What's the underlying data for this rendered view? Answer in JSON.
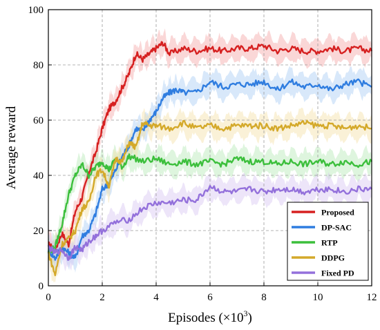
{
  "chart_data": {
    "type": "line",
    "xlabel": "Episodes (×10",
    "xlabel_sup": "3",
    "xlabel_close": ")",
    "ylabel": "Average reward",
    "xlim": [
      0,
      12
    ],
    "ylim": [
      0,
      100
    ],
    "x_ticks": [
      "0",
      "2",
      "4",
      "6",
      "8",
      "10",
      "12"
    ],
    "y_ticks": [
      "0",
      "20",
      "40",
      "60",
      "80",
      "100"
    ],
    "grid": true,
    "legend_position": "bottom-right",
    "series": [
      {
        "name": "Proposed",
        "color": "#d62020",
        "band_color": "#f4a6a6",
        "x": [
          0,
          0.25,
          0.5,
          0.75,
          1.0,
          1.25,
          1.5,
          1.75,
          2.0,
          2.25,
          2.5,
          2.75,
          3.0,
          3.25,
          3.5,
          3.75,
          4.0,
          4.25,
          4.5,
          5.0,
          5.5,
          6.0,
          6.5,
          7.0,
          7.5,
          8.0,
          8.5,
          9.0,
          9.5,
          10.0,
          10.5,
          11.0,
          11.5,
          12.0
        ],
        "y": [
          15,
          13,
          19,
          15,
          27,
          32,
          41,
          48,
          57,
          64,
          67,
          72,
          77,
          84,
          82,
          84,
          86,
          88,
          84,
          86,
          85,
          86,
          85,
          86,
          86,
          87,
          85,
          86,
          85,
          85,
          86,
          85,
          86,
          85
        ]
      },
      {
        "name": "DP-SAC",
        "color": "#2f7de0",
        "band_color": "#a9cdf5",
        "x": [
          0,
          0.25,
          0.5,
          0.75,
          1.0,
          1.25,
          1.5,
          1.75,
          2.0,
          2.25,
          2.5,
          2.75,
          3.0,
          3.25,
          3.5,
          3.75,
          4.0,
          4.25,
          4.5,
          4.75,
          5.0,
          5.5,
          6.0,
          6.5,
          7.0,
          7.5,
          8.0,
          8.5,
          9.0,
          9.5,
          10.0,
          10.5,
          11.0,
          11.5,
          12.0
        ],
        "y": [
          13,
          10,
          14,
          12,
          10,
          18,
          20,
          26,
          35,
          37,
          42,
          47,
          51,
          57,
          56,
          60,
          63,
          68,
          70,
          71,
          70,
          70,
          74,
          72,
          73,
          73,
          74,
          71,
          74,
          72,
          73,
          71,
          73,
          74,
          72
        ]
      },
      {
        "name": "RTP",
        "color": "#3cbf3c",
        "band_color": "#b5e8b5",
        "x": [
          0,
          0.25,
          0.5,
          0.75,
          1.0,
          1.25,
          1.5,
          1.75,
          2.0,
          2.25,
          2.5,
          2.75,
          3.0,
          3.5,
          4.0,
          4.5,
          5.0,
          5.5,
          6.0,
          6.5,
          7.0,
          7.5,
          8.0,
          8.5,
          9.0,
          9.5,
          10.0,
          10.5,
          11.0,
          11.5,
          12.0
        ],
        "y": [
          12,
          14,
          22,
          33,
          40,
          44,
          40,
          43,
          45,
          42,
          46,
          43,
          47,
          45,
          46,
          44,
          45,
          44,
          45,
          44,
          46,
          45,
          45,
          44,
          45,
          44,
          45,
          44,
          45,
          44,
          45
        ]
      },
      {
        "name": "DDPG",
        "color": "#d4a92a",
        "band_color": "#f3e0a6",
        "x": [
          0,
          0.25,
          0.5,
          0.75,
          1.0,
          1.25,
          1.5,
          1.75,
          2.0,
          2.25,
          2.5,
          2.75,
          3.0,
          3.25,
          3.5,
          3.75,
          4.0,
          4.5,
          5.0,
          5.5,
          6.0,
          6.5,
          7.0,
          7.5,
          8.0,
          8.5,
          9.0,
          9.5,
          10.0,
          10.5,
          11.0,
          11.5,
          12.0
        ],
        "y": [
          12,
          4,
          15,
          17,
          20,
          28,
          30,
          40,
          42,
          36,
          46,
          45,
          52,
          50,
          59,
          58,
          58,
          57,
          59,
          57,
          58,
          57,
          58,
          58,
          58,
          57,
          58,
          59,
          58,
          58,
          57,
          58,
          57
        ]
      },
      {
        "name": "Fixed PD",
        "color": "#9370db",
        "band_color": "#d6c6f2",
        "x": [
          0,
          0.25,
          0.5,
          0.75,
          1.0,
          1.25,
          1.5,
          1.75,
          2.0,
          2.5,
          3.0,
          3.5,
          4.0,
          4.5,
          5.0,
          5.5,
          6.0,
          6.5,
          7.0,
          7.5,
          8.0,
          8.5,
          9.0,
          9.5,
          10.0,
          10.5,
          11.0,
          11.5,
          12.0
        ],
        "y": [
          14,
          12,
          13,
          10,
          14,
          13,
          16,
          18,
          20,
          23,
          24,
          28,
          30,
          30,
          31,
          31,
          36,
          34,
          34,
          35,
          34,
          35,
          35,
          34,
          35,
          35,
          34,
          35,
          35
        ]
      }
    ]
  }
}
